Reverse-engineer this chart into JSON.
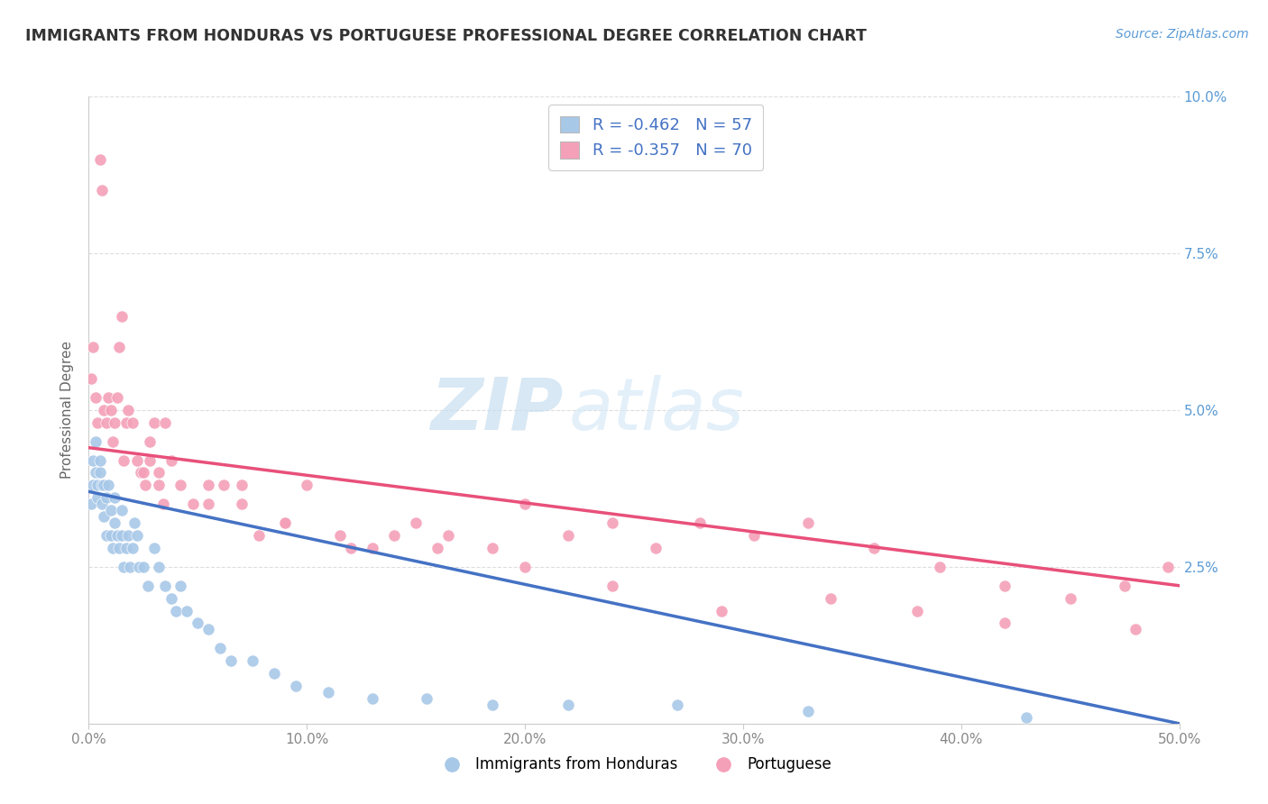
{
  "title": "IMMIGRANTS FROM HONDURAS VS PORTUGUESE PROFESSIONAL DEGREE CORRELATION CHART",
  "source": "Source: ZipAtlas.com",
  "ylabel": "Professional Degree",
  "legend_label1": "Immigrants from Honduras",
  "legend_label2": "Portuguese",
  "r1": -0.462,
  "n1": 57,
  "r2": -0.357,
  "n2": 70,
  "color1": "#a8c8e8",
  "color2": "#f4a0b8",
  "line_color1": "#4472c4",
  "line_color2": "#e8507a",
  "watermark_zip": "ZIP",
  "watermark_atlas": "atlas",
  "xlim": [
    0.0,
    0.5
  ],
  "ylim": [
    0.0,
    0.1
  ],
  "xticks": [
    0.0,
    0.1,
    0.2,
    0.3,
    0.4,
    0.5
  ],
  "yticks": [
    0.0,
    0.025,
    0.05,
    0.075,
    0.1
  ],
  "background_color": "#ffffff",
  "grid_color": "#dddddd",
  "honduras_x": [
    0.001,
    0.002,
    0.002,
    0.003,
    0.003,
    0.004,
    0.004,
    0.005,
    0.005,
    0.006,
    0.006,
    0.007,
    0.007,
    0.008,
    0.008,
    0.009,
    0.01,
    0.01,
    0.011,
    0.012,
    0.012,
    0.013,
    0.014,
    0.015,
    0.015,
    0.016,
    0.017,
    0.018,
    0.019,
    0.02,
    0.021,
    0.022,
    0.023,
    0.025,
    0.027,
    0.03,
    0.032,
    0.035,
    0.038,
    0.04,
    0.042,
    0.045,
    0.05,
    0.055,
    0.06,
    0.065,
    0.075,
    0.085,
    0.095,
    0.11,
    0.13,
    0.155,
    0.185,
    0.22,
    0.27,
    0.33,
    0.43
  ],
  "honduras_y": [
    0.035,
    0.038,
    0.042,
    0.04,
    0.045,
    0.038,
    0.036,
    0.04,
    0.042,
    0.038,
    0.035,
    0.038,
    0.033,
    0.036,
    0.03,
    0.038,
    0.034,
    0.03,
    0.028,
    0.032,
    0.036,
    0.03,
    0.028,
    0.034,
    0.03,
    0.025,
    0.028,
    0.03,
    0.025,
    0.028,
    0.032,
    0.03,
    0.025,
    0.025,
    0.022,
    0.028,
    0.025,
    0.022,
    0.02,
    0.018,
    0.022,
    0.018,
    0.016,
    0.015,
    0.012,
    0.01,
    0.01,
    0.008,
    0.006,
    0.005,
    0.004,
    0.004,
    0.003,
    0.003,
    0.003,
    0.002,
    0.001
  ],
  "portuguese_x": [
    0.001,
    0.002,
    0.003,
    0.004,
    0.005,
    0.006,
    0.007,
    0.008,
    0.009,
    0.01,
    0.011,
    0.012,
    0.013,
    0.014,
    0.015,
    0.016,
    0.017,
    0.018,
    0.02,
    0.022,
    0.024,
    0.026,
    0.028,
    0.03,
    0.032,
    0.034,
    0.038,
    0.042,
    0.048,
    0.055,
    0.062,
    0.07,
    0.078,
    0.09,
    0.1,
    0.115,
    0.13,
    0.15,
    0.165,
    0.185,
    0.2,
    0.22,
    0.24,
    0.26,
    0.28,
    0.305,
    0.33,
    0.36,
    0.39,
    0.42,
    0.45,
    0.475,
    0.495,
    0.028,
    0.035,
    0.032,
    0.025,
    0.055,
    0.07,
    0.09,
    0.12,
    0.14,
    0.16,
    0.2,
    0.24,
    0.29,
    0.34,
    0.38,
    0.42,
    0.48
  ],
  "portuguese_y": [
    0.055,
    0.06,
    0.052,
    0.048,
    0.09,
    0.085,
    0.05,
    0.048,
    0.052,
    0.05,
    0.045,
    0.048,
    0.052,
    0.06,
    0.065,
    0.042,
    0.048,
    0.05,
    0.048,
    0.042,
    0.04,
    0.038,
    0.042,
    0.048,
    0.04,
    0.035,
    0.042,
    0.038,
    0.035,
    0.038,
    0.038,
    0.035,
    0.03,
    0.032,
    0.038,
    0.03,
    0.028,
    0.032,
    0.03,
    0.028,
    0.035,
    0.03,
    0.032,
    0.028,
    0.032,
    0.03,
    0.032,
    0.028,
    0.025,
    0.022,
    0.02,
    0.022,
    0.025,
    0.045,
    0.048,
    0.038,
    0.04,
    0.035,
    0.038,
    0.032,
    0.028,
    0.03,
    0.028,
    0.025,
    0.022,
    0.018,
    0.02,
    0.018,
    0.016,
    0.015
  ],
  "h_line_x0": 0.0,
  "h_line_y0": 0.037,
  "h_line_x1": 0.5,
  "h_line_y1": 0.0,
  "p_line_x0": 0.0,
  "p_line_y0": 0.044,
  "p_line_x1": 0.5,
  "p_line_y1": 0.022
}
